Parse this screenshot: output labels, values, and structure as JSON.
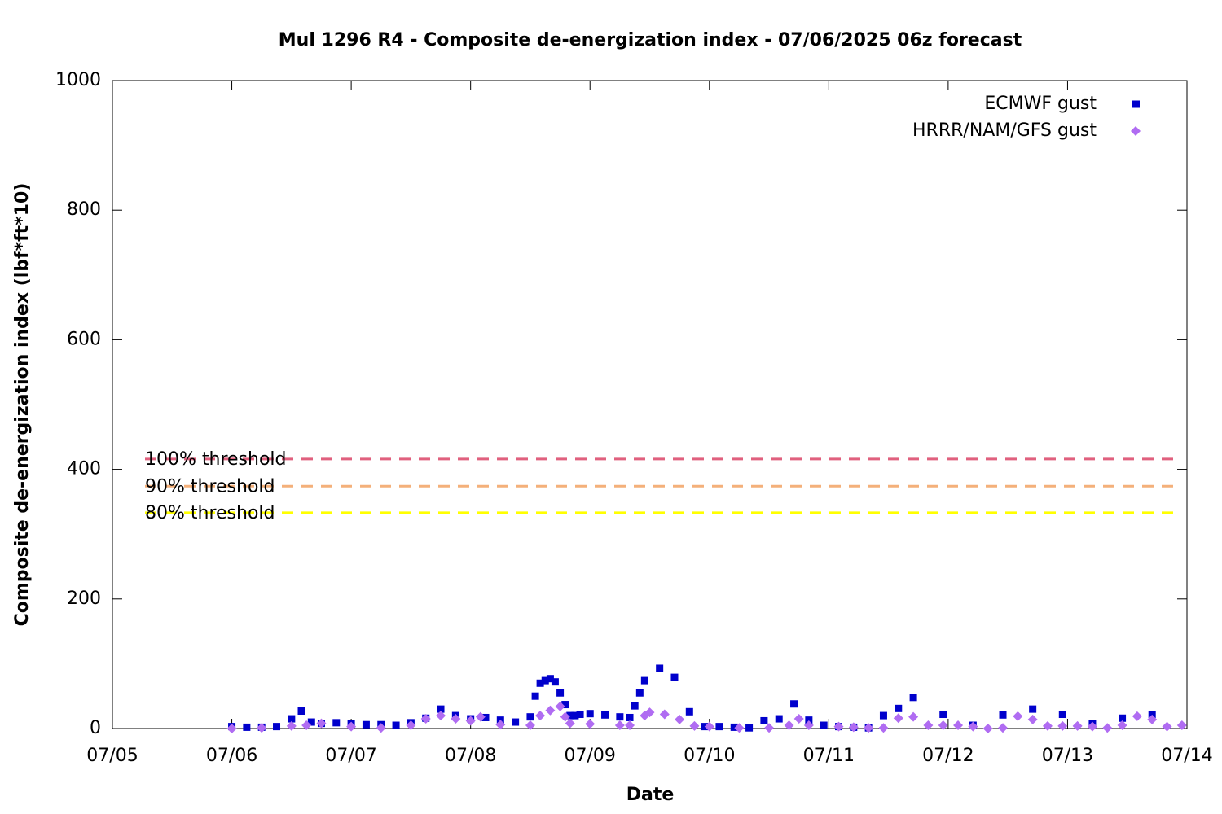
{
  "chart_data": {
    "type": "scatter",
    "title": "Mul 1296 R4 - Composite de-energization index - 07/06/2025 06z forecast",
    "x_label": "Date",
    "y_label": "Composite de-energization index (lbf*ft*10)",
    "xlim": [
      0,
      9
    ],
    "xticks": [
      {
        "value": 0,
        "label": "07/05"
      },
      {
        "value": 1,
        "label": "07/06"
      },
      {
        "value": 2,
        "label": "07/07"
      },
      {
        "value": 3,
        "label": "07/08"
      },
      {
        "value": 4,
        "label": "07/09"
      },
      {
        "value": 5,
        "label": "07/10"
      },
      {
        "value": 6,
        "label": "07/11"
      },
      {
        "value": 7,
        "label": "07/12"
      },
      {
        "value": 8,
        "label": "07/13"
      },
      {
        "value": 9,
        "label": "07/14"
      }
    ],
    "ylim": [
      0,
      1000
    ],
    "yticks": [
      0,
      200,
      400,
      600,
      800,
      1000
    ],
    "grid": false,
    "legend": "top-right",
    "series": [
      {
        "name": "ECMWF gust",
        "color": "#0000cc",
        "marker": "square",
        "x": [
          1.0,
          1.125,
          1.25,
          1.375,
          1.5,
          1.583,
          1.667,
          1.75,
          1.875,
          2.0,
          2.125,
          2.25,
          2.375,
          2.5,
          2.625,
          2.75,
          2.875,
          3.0,
          3.125,
          3.25,
          3.375,
          3.5,
          3.542,
          3.583,
          3.625,
          3.667,
          3.708,
          3.75,
          3.792,
          3.833,
          3.875,
          3.917,
          4.0,
          4.125,
          4.25,
          4.333,
          4.375,
          4.417,
          4.458,
          4.583,
          4.708,
          4.833,
          4.958,
          5.083,
          5.208,
          5.333,
          5.458,
          5.583,
          5.708,
          5.833,
          5.958,
          6.083,
          6.208,
          6.333,
          6.458,
          6.583,
          6.708,
          6.958,
          7.208,
          7.458,
          7.708,
          7.958,
          8.208,
          8.458,
          8.708
        ],
        "values": [
          3,
          2,
          2,
          3,
          15,
          27,
          10,
          8,
          9,
          7,
          6,
          6,
          5,
          9,
          16,
          30,
          20,
          15,
          17,
          13,
          10,
          18,
          50,
          70,
          74,
          77,
          72,
          55,
          37,
          20,
          20,
          22,
          23,
          21,
          18,
          17,
          35,
          55,
          74,
          93,
          79,
          26,
          3,
          3,
          2,
          1,
          12,
          15,
          38,
          13,
          5,
          3,
          2,
          1,
          20,
          31,
          48,
          22,
          5,
          21,
          30,
          22,
          8,
          16,
          22
        ]
      },
      {
        "name": "HRRR/NAM/GFS gust",
        "color": "#b06cf2",
        "marker": "diamond",
        "x": [
          1.0,
          1.25,
          1.5,
          1.625,
          1.75,
          2.0,
          2.25,
          2.5,
          2.625,
          2.75,
          2.875,
          3.0,
          3.083,
          3.25,
          3.5,
          3.583,
          3.667,
          3.75,
          3.792,
          3.833,
          4.0,
          4.25,
          4.333,
          4.458,
          4.5,
          4.625,
          4.75,
          4.875,
          5.0,
          5.25,
          5.5,
          5.667,
          5.75,
          5.833,
          6.083,
          6.208,
          6.333,
          6.458,
          6.583,
          6.708,
          6.833,
          6.958,
          7.083,
          7.208,
          7.333,
          7.458,
          7.583,
          7.708,
          7.833,
          7.958,
          8.083,
          8.208,
          8.333,
          8.458,
          8.583,
          8.708,
          8.833,
          8.958
        ],
        "values": [
          0,
          1,
          4,
          5,
          8,
          3,
          1,
          5,
          15,
          20,
          15,
          12,
          18,
          6,
          5,
          20,
          28,
          34,
          18,
          8,
          7,
          5,
          5,
          20,
          25,
          22,
          14,
          4,
          3,
          1,
          1,
          5,
          15,
          5,
          3,
          2,
          1,
          1,
          16,
          18,
          5,
          5,
          5,
          3,
          0,
          1,
          19,
          14,
          4,
          4,
          4,
          3,
          1,
          5,
          19,
          14,
          3,
          5
        ]
      }
    ],
    "thresholds": [
      {
        "name": "100% threshold",
        "value": 416,
        "color": "#e0607e"
      },
      {
        "name": "90% threshold",
        "value": 374,
        "color": "#f4b07a"
      },
      {
        "name": "80% threshold",
        "value": 333,
        "color": "#ffff00"
      }
    ]
  }
}
